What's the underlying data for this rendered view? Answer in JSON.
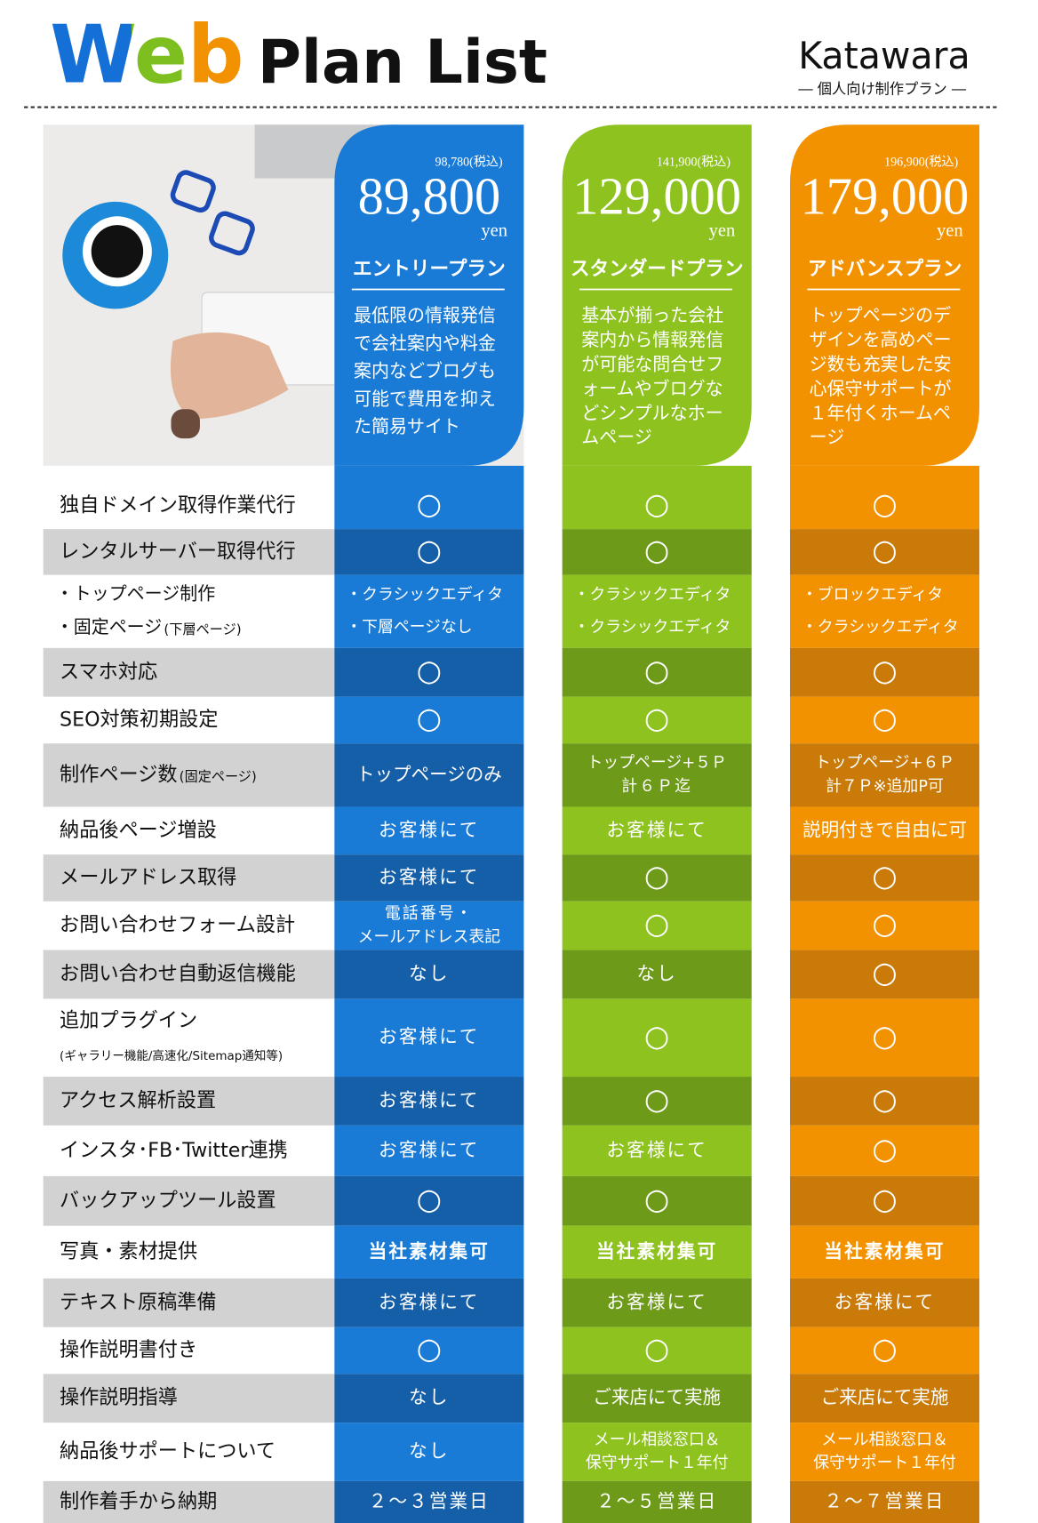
{
  "header": {
    "title_web": "Web",
    "title_rest": "Plan List",
    "brand": "Katawara",
    "brand_sub": "― 個人向け制作プラン ―"
  },
  "plans": [
    {
      "price_tax": "98,780(税込)",
      "price": "89,800",
      "unit": "yen",
      "name": "エントリープラン",
      "description": [
        "最低限の情報発信",
        "で会社案内や料金",
        "案内などブログも",
        "可能で費用を抑え",
        "た簡易サイト"
      ]
    },
    {
      "price_tax": "141,900(税込)",
      "price": "129,000",
      "unit": "yen",
      "name": "スタンダードプラン",
      "description": [
        "基本が揃った会社",
        "案内から情報発信",
        "が可能な問合せフ",
        "ォームやブログな",
        "どシンプルなホー",
        "ムページ"
      ]
    },
    {
      "price_tax": "196,900(税込)",
      "price": "179,000",
      "unit": "yen",
      "name": "アドバンスプラン",
      "description": [
        "トップページのデ",
        "ザインを高めペー",
        "ジ数も充実した安",
        "心保守サポートが",
        "１年付くホームペ",
        "ージ"
      ]
    }
  ],
  "rows": [
    {
      "label": [
        "独自ドメイン取得作業代行"
      ],
      "cells": [
        [
          "○"
        ],
        [
          "○"
        ],
        [
          "○"
        ]
      ]
    },
    {
      "label": [
        "レンタルサーバー取得代行"
      ],
      "cells": [
        [
          "○"
        ],
        [
          "○"
        ],
        [
          "○"
        ]
      ]
    },
    {
      "label": [
        "・トップページ制作",
        "・固定ページ"
      ],
      "note": "(下層ページ)",
      "note_inline": true,
      "cells": [
        [
          "・クラシックエディタ",
          "・下層ページなし"
        ],
        [
          "・クラシックエディタ",
          "・クラシックエディタ"
        ],
        [
          "・ブロックエディタ",
          "・クラシックエディタ"
        ]
      ]
    },
    {
      "label": [
        "スマホ対応"
      ],
      "cells": [
        [
          "○"
        ],
        [
          "○"
        ],
        [
          "○"
        ]
      ]
    },
    {
      "label": [
        "SEO対策初期設定"
      ],
      "cells": [
        [
          "○"
        ],
        [
          "○"
        ],
        [
          "○"
        ]
      ]
    },
    {
      "label": [
        "制作ページ数"
      ],
      "note": "(固定ページ)",
      "note_inline": true,
      "cells": [
        [
          "トップページのみ"
        ],
        [
          "トップページ+５Ｐ",
          "計６Ｐ迄"
        ],
        [
          "トップページ+６Ｐ",
          "計７Ｐ※追加P可"
        ]
      ]
    },
    {
      "label": [
        "納品後ページ増設"
      ],
      "cells": [
        [
          "お客様にて"
        ],
        [
          "お客様にて"
        ],
        [
          "説明付きで自由に可"
        ]
      ]
    },
    {
      "label": [
        "メールアドレス取得"
      ],
      "cells": [
        [
          "お客様にて"
        ],
        [
          "○"
        ],
        [
          "○"
        ]
      ]
    },
    {
      "label": [
        "お問い合わせフォーム設計"
      ],
      "cells": [
        [
          "電話番号・",
          "メールアドレス表記"
        ],
        [
          "○"
        ],
        [
          "○"
        ]
      ]
    },
    {
      "label": [
        "お問い合わせ自動返信機能"
      ],
      "cells": [
        [
          "なし"
        ],
        [
          "なし"
        ],
        [
          "○"
        ]
      ]
    },
    {
      "label": [
        "追加プラグイン"
      ],
      "note": "(ギャラリー機能/高速化/Sitemap通知等)",
      "note_inline": false,
      "cells": [
        [
          "お客様にて"
        ],
        [
          "○"
        ],
        [
          "○"
        ]
      ]
    },
    {
      "label": [
        "アクセス解析設置"
      ],
      "cells": [
        [
          "お客様にて"
        ],
        [
          "○"
        ],
        [
          "○"
        ]
      ]
    },
    {
      "label": [
        "インスタ･FB･Twitter連携"
      ],
      "cells": [
        [
          "お客様にて"
        ],
        [
          "お客様にて"
        ],
        [
          "○"
        ]
      ]
    },
    {
      "label": [
        "バックアップツール設置"
      ],
      "cells": [
        [
          "○"
        ],
        [
          "○"
        ],
        [
          "○"
        ]
      ]
    },
    {
      "label": [
        "写真・素材提供"
      ],
      "cells": [
        [
          "当社素材集可"
        ],
        [
          "当社素材集可"
        ],
        [
          "当社素材集可"
        ]
      ]
    },
    {
      "label": [
        "テキスト原稿準備"
      ],
      "cells": [
        [
          "お客様にて"
        ],
        [
          "お客様にて"
        ],
        [
          "お客様にて"
        ]
      ]
    },
    {
      "label": [
        "操作説明書付き"
      ],
      "cells": [
        [
          "○"
        ],
        [
          "○"
        ],
        [
          "○"
        ]
      ]
    },
    {
      "label": [
        "操作説明指導"
      ],
      "cells": [
        [
          "なし"
        ],
        [
          "ご来店にて実施"
        ],
        [
          "ご来店にて実施"
        ]
      ]
    },
    {
      "label": [
        "納品後サポートについて"
      ],
      "cells": [
        [
          "なし"
        ],
        [
          "メール相談窓口＆",
          "保守サポート１年付"
        ],
        [
          "メール相談窓口＆",
          "保守サポート１年付"
        ]
      ]
    },
    {
      "label": [
        "制作着手から納期"
      ],
      "cells": [
        [
          "２〜３営業日"
        ],
        [
          "２〜５営業日"
        ],
        [
          "２〜７営業日"
        ]
      ]
    }
  ]
}
